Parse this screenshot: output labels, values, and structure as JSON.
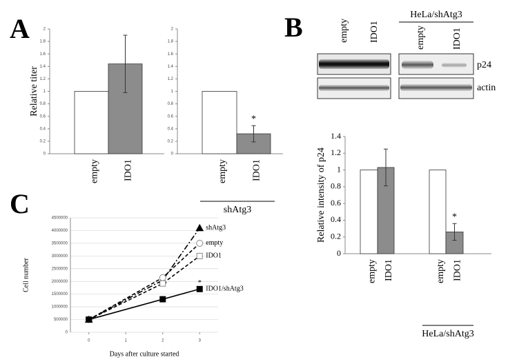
{
  "panel_labels": [
    "A",
    "B",
    "C"
  ],
  "blot": {
    "lanes": [
      "empty",
      "IDO1",
      "empty",
      "IDO1"
    ],
    "group_label": "HeLa/shAtg3",
    "rows": [
      "p24",
      "actin"
    ]
  },
  "chart_data": [
    {
      "type": "bar",
      "ylabel": "Relative titer",
      "categories": [
        "empty",
        "IDO1"
      ],
      "values": [
        1,
        1.44
      ],
      "errors": [
        0,
        0.46
      ],
      "colors": [
        "#ffffff",
        "#8c8c8c"
      ],
      "ylim": [
        0,
        2
      ],
      "yticks": [
        0,
        0.2,
        0.4,
        0.6,
        0.8,
        1,
        1.2,
        1.4,
        1.6,
        1.8,
        2
      ]
    },
    {
      "type": "bar",
      "categories": [
        "empty",
        "IDO1"
      ],
      "values": [
        1,
        0.32
      ],
      "errors": [
        0,
        0.13
      ],
      "value_annotations": [
        null,
        "*"
      ],
      "colors": [
        "#ffffff",
        "#8c8c8c"
      ],
      "group_label": "shAtg3",
      "ylim": [
        0,
        2
      ],
      "yticks": [
        0,
        0.2,
        0.4,
        0.6,
        0.8,
        1,
        1.2,
        1.4,
        1.6,
        1.8,
        2
      ]
    },
    {
      "type": "bar",
      "ylabel": "Relative intensity of p24",
      "categories": [
        "empty",
        "IDO1",
        "empty",
        "IDO1"
      ],
      "values": [
        1,
        1.03,
        1,
        0.26
      ],
      "errors": [
        0,
        0.22,
        0,
        0.1
      ],
      "value_annotations": [
        null,
        null,
        null,
        "*"
      ],
      "colors": [
        "#ffffff",
        "#8c8c8c",
        "#ffffff",
        "#8c8c8c"
      ],
      "group_label": "HeLa/shAtg3",
      "ylim": [
        0,
        1.4
      ],
      "yticks": [
        0,
        0.2,
        0.4,
        0.6,
        0.8,
        1,
        1.2,
        1.4
      ]
    },
    {
      "type": "line",
      "xlabel": "Days after culture started",
      "ylabel": "Cell number",
      "x": [
        0,
        2,
        3
      ],
      "xlim": [
        -0.5,
        3.5
      ],
      "xticks": [
        0,
        1,
        2,
        3
      ],
      "ylim": [
        0,
        4500000
      ],
      "yticks": [
        0,
        500000,
        1000000,
        1500000,
        2000000,
        2500000,
        3000000,
        3500000,
        4000000,
        4500000
      ],
      "grid": true,
      "series": [
        {
          "name": "shAtg3",
          "values": [
            500000,
            2050000,
            4100000
          ],
          "marker": "triangle",
          "filled": true,
          "dash": "8 3 2 3",
          "color": "#000000"
        },
        {
          "name": "empty",
          "values": [
            500000,
            2150000,
            3500000
          ],
          "marker": "circle",
          "filled": false,
          "dash": "5 3",
          "color": "#000000"
        },
        {
          "name": "IDO1",
          "values": [
            500000,
            1920000,
            3000000
          ],
          "marker": "square",
          "filled": false,
          "dash": "5 3",
          "color": "#000000"
        },
        {
          "name": "IDO1/shAtg3",
          "values": [
            500000,
            1300000,
            1700000
          ],
          "marker": "square",
          "filled": true,
          "dash": "none",
          "color": "#000000",
          "value_annotations": [
            null,
            null,
            "*"
          ]
        }
      ]
    }
  ]
}
